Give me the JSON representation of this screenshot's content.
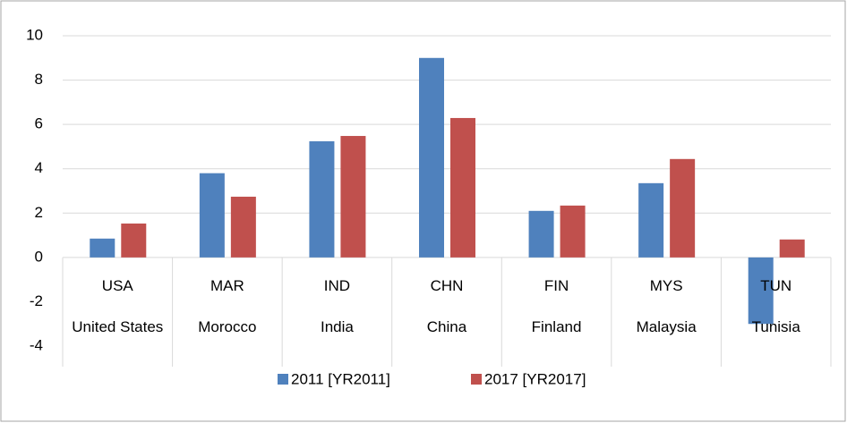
{
  "chart_data": {
    "type": "bar",
    "categories": [
      "USA",
      "MAR",
      "IND",
      "CHN",
      "FIN",
      "MYS",
      "TUN"
    ],
    "category_names": [
      "United States",
      "Morocco",
      "India",
      "China",
      "Finland",
      "Malaysia",
      "Tunisia"
    ],
    "series": [
      {
        "name": "2011 [YR2011]",
        "color": "#4f81bd",
        "values": [
          0.85,
          3.8,
          5.24,
          9.0,
          2.1,
          3.35,
          -3.0
        ]
      },
      {
        "name": "2017 [YR2017]",
        "color": "#c0504d",
        "values": [
          1.53,
          2.74,
          5.48,
          6.29,
          2.34,
          4.44,
          0.81
        ]
      }
    ],
    "ylim": [
      -4,
      10
    ],
    "yticks": [
      -4,
      -2,
      0,
      2,
      4,
      6,
      8,
      10
    ],
    "grid": true,
    "legend": "bottom"
  }
}
